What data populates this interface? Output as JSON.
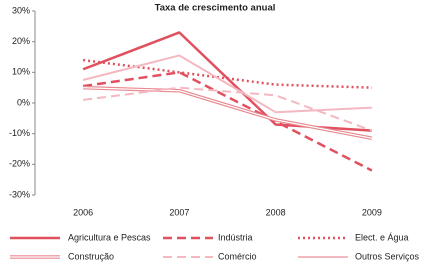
{
  "chart_data": {
    "type": "line",
    "title": "Taxa de crescimento anual",
    "categories": [
      "2006",
      "2007",
      "2008",
      "2009"
    ],
    "ylim": [
      -30,
      30
    ],
    "yticks": [
      {
        "value": -30,
        "label": "-30%"
      },
      {
        "value": -20,
        "label": "-20%"
      },
      {
        "value": -10,
        "label": "-10%"
      },
      {
        "value": 0,
        "label": "0%"
      },
      {
        "value": 10,
        "label": "10%"
      },
      {
        "value": 20,
        "label": "20%"
      },
      {
        "value": 30,
        "label": "30%"
      }
    ],
    "series": [
      {
        "name": "Agricultura e Pescas",
        "color": "#e0505e",
        "style": "solid",
        "values": [
          11,
          23,
          -7,
          -9
        ]
      },
      {
        "name": "Indústria",
        "color": "#e0505e",
        "style": "dashed",
        "values": [
          5.5,
          10,
          -6,
          -22
        ]
      },
      {
        "name": "Elect. e Água",
        "color": "#e0505e",
        "style": "dotted",
        "values": [
          14,
          10,
          6,
          5
        ]
      },
      {
        "name": "Construção",
        "color": "#e88890",
        "style": "double",
        "values": [
          5,
          4,
          -5.5,
          -11.5
        ]
      },
      {
        "name": "Comércio",
        "color": "#f4b8c0",
        "style": "dashed",
        "values": [
          1,
          5,
          2.5,
          -9
        ]
      },
      {
        "name": "Outros Serviços",
        "color": "#f4b8c0",
        "style": "solid",
        "values": [
          7.5,
          15.5,
          -3,
          -1.5
        ]
      }
    ]
  }
}
